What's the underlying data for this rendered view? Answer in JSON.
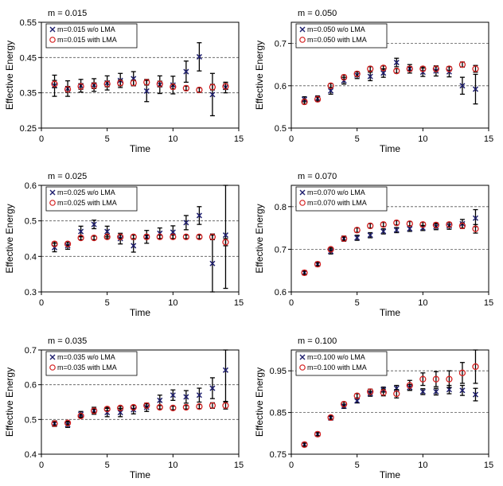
{
  "colors": {
    "wo": "#1f1f6e",
    "with": "#d42020",
    "err": "#000000",
    "grid": "#555555"
  },
  "chart_data": [
    {
      "type": "scatter",
      "title": "m = 0.015",
      "xlabel": "Time",
      "ylabel": "Effective Energy",
      "xlim": [
        0,
        15
      ],
      "ylim": [
        0.25,
        0.55
      ],
      "xticks": [
        0,
        5,
        10,
        15
      ],
      "yticks": [
        0.25,
        0.35,
        0.45,
        0.55
      ],
      "xtick_labels": [
        "0",
        "5",
        "10",
        "15"
      ],
      "ytick_labels": [
        "0.25",
        "0.35",
        "0.45",
        "0.55"
      ],
      "grid_y": [
        0.35,
        0.45
      ],
      "legend": [
        "m=0.015 w/o LMA",
        "m=0.015 with LMA"
      ],
      "series": [
        {
          "name": "m=0.015 w/o LMA",
          "marker": "x",
          "x": [
            1,
            2,
            3,
            4,
            5,
            6,
            7,
            8,
            9,
            10,
            11,
            12,
            13,
            14
          ],
          "y": [
            0.37,
            0.362,
            0.37,
            0.372,
            0.378,
            0.385,
            0.39,
            0.355,
            0.373,
            0.372,
            0.41,
            0.452,
            0.345,
            0.365
          ],
          "err": [
            0.03,
            0.022,
            0.018,
            0.018,
            0.02,
            0.02,
            0.02,
            0.03,
            0.025,
            0.025,
            0.03,
            0.04,
            0.06,
            0.015
          ]
        },
        {
          "name": "m=0.015 with LMA",
          "marker": "o",
          "x": [
            1,
            2,
            3,
            4,
            5,
            6,
            7,
            8,
            9,
            10,
            11,
            12,
            13,
            14
          ],
          "y": [
            0.375,
            0.36,
            0.368,
            0.37,
            0.375,
            0.378,
            0.378,
            0.38,
            0.375,
            0.367,
            0.363,
            0.358,
            0.366,
            0.368
          ],
          "err": [
            0.01,
            0.008,
            0.008,
            0.008,
            0.008,
            0.008,
            0.008,
            0.008,
            0.008,
            0.006,
            0.006,
            0.006,
            0.008,
            0.008
          ]
        }
      ]
    },
    {
      "type": "scatter",
      "title": "m = 0.050",
      "xlabel": "Time",
      "ylabel": "Effective Energy",
      "xlim": [
        0,
        15
      ],
      "ylim": [
        0.5,
        0.75
      ],
      "xticks": [
        0,
        5,
        10,
        15
      ],
      "yticks": [
        0.5,
        0.6,
        0.7
      ],
      "xtick_labels": [
        "0",
        "5",
        "10",
        "15"
      ],
      "ytick_labels": [
        "0.5",
        "0.6",
        "0.7"
      ],
      "grid_y": [
        0.6,
        0.7
      ],
      "legend": [
        "m=0.050 w/o LMA",
        "m=0.050 with LMA"
      ],
      "series": [
        {
          "name": "m=0.050 w/o LMA",
          "marker": "x",
          "x": [
            1,
            2,
            3,
            4,
            5,
            6,
            7,
            8,
            9,
            10,
            11,
            12,
            13,
            14
          ],
          "y": [
            0.568,
            0.57,
            0.588,
            0.612,
            0.625,
            0.622,
            0.63,
            0.655,
            0.64,
            0.632,
            0.635,
            0.633,
            0.6,
            0.592
          ],
          "err": [
            0.006,
            0.006,
            0.008,
            0.008,
            0.008,
            0.01,
            0.01,
            0.01,
            0.01,
            0.01,
            0.012,
            0.012,
            0.02,
            0.035
          ]
        },
        {
          "name": "m=0.050 with LMA",
          "marker": "o",
          "x": [
            1,
            2,
            3,
            4,
            5,
            6,
            7,
            8,
            9,
            10,
            11,
            12,
            13,
            14
          ],
          "y": [
            0.562,
            0.568,
            0.6,
            0.62,
            0.628,
            0.64,
            0.642,
            0.635,
            0.64,
            0.64,
            0.64,
            0.64,
            0.65,
            0.64
          ],
          "err": [
            0.005,
            0.005,
            0.005,
            0.005,
            0.005,
            0.005,
            0.005,
            0.005,
            0.005,
            0.005,
            0.005,
            0.005,
            0.006,
            0.008
          ]
        }
      ]
    },
    {
      "type": "scatter",
      "title": "m = 0.025",
      "xlabel": "Time",
      "ylabel": "Effective Energy",
      "xlim": [
        0,
        15
      ],
      "ylim": [
        0.3,
        0.6
      ],
      "xticks": [
        0,
        5,
        10,
        15
      ],
      "yticks": [
        0.3,
        0.4,
        0.5,
        0.6
      ],
      "xtick_labels": [
        "0",
        "5",
        "10",
        "15"
      ],
      "ytick_labels": [
        "0.3",
        "0.4",
        "0.5",
        "0.6"
      ],
      "grid_y": [
        0.4,
        0.5
      ],
      "legend": [
        "m=0.025 w/o LMA",
        "m=0.025 with LMA"
      ],
      "series": [
        {
          "name": "m=0.025 w/o LMA",
          "marker": "x",
          "x": [
            1,
            2,
            3,
            4,
            5,
            6,
            7,
            8,
            9,
            10,
            11,
            12,
            13,
            14
          ],
          "y": [
            0.425,
            0.43,
            0.47,
            0.49,
            0.47,
            0.45,
            0.43,
            0.455,
            0.465,
            0.468,
            0.495,
            0.515,
            0.38,
            0.46
          ],
          "err": [
            0.012,
            0.01,
            0.015,
            0.012,
            0.015,
            0.015,
            0.018,
            0.018,
            0.015,
            0.018,
            0.02,
            0.025,
            0.08,
            0.15
          ]
        },
        {
          "name": "m=0.025 with LMA",
          "marker": "o",
          "x": [
            1,
            2,
            3,
            4,
            5,
            6,
            7,
            8,
            9,
            10,
            11,
            12,
            13,
            14
          ],
          "y": [
            0.435,
            0.435,
            0.452,
            0.452,
            0.455,
            0.455,
            0.455,
            0.455,
            0.455,
            0.455,
            0.455,
            0.455,
            0.455,
            0.44
          ],
          "err": [
            0.006,
            0.005,
            0.005,
            0.005,
            0.005,
            0.005,
            0.005,
            0.005,
            0.005,
            0.005,
            0.005,
            0.005,
            0.008,
            0.01
          ]
        }
      ]
    },
    {
      "type": "scatter",
      "title": "m = 0.070",
      "xlabel": "Time",
      "ylabel": "Effective Energy",
      "xlim": [
        0,
        15
      ],
      "ylim": [
        0.6,
        0.85
      ],
      "xticks": [
        0,
        5,
        10,
        15
      ],
      "yticks": [
        0.6,
        0.7,
        0.8
      ],
      "xtick_labels": [
        "0",
        "5",
        "10",
        "15"
      ],
      "ytick_labels": [
        "0.6",
        "0.7",
        "0.8"
      ],
      "grid_y": [
        0.7,
        0.8
      ],
      "legend": [
        "m=0.070 w/o LMA",
        "m=0.070 with LMA"
      ],
      "series": [
        {
          "name": "m=0.070 w/o LMA",
          "marker": "x",
          "x": [
            1,
            2,
            3,
            4,
            5,
            6,
            7,
            8,
            9,
            10,
            11,
            12,
            13,
            14
          ],
          "y": [
            0.645,
            0.665,
            0.695,
            0.725,
            0.727,
            0.733,
            0.742,
            0.745,
            0.748,
            0.75,
            0.753,
            0.755,
            0.76,
            0.773
          ],
          "err": [
            0.005,
            0.005,
            0.006,
            0.006,
            0.006,
            0.006,
            0.006,
            0.006,
            0.006,
            0.006,
            0.007,
            0.008,
            0.01,
            0.02
          ]
        },
        {
          "name": "m=0.070 with LMA",
          "marker": "o",
          "x": [
            1,
            2,
            3,
            4,
            5,
            6,
            7,
            8,
            9,
            10,
            11,
            12,
            13,
            14
          ],
          "y": [
            0.645,
            0.665,
            0.7,
            0.725,
            0.745,
            0.755,
            0.758,
            0.762,
            0.76,
            0.758,
            0.757,
            0.758,
            0.755,
            0.748
          ],
          "err": [
            0.004,
            0.004,
            0.004,
            0.004,
            0.005,
            0.005,
            0.005,
            0.005,
            0.005,
            0.005,
            0.005,
            0.005,
            0.006,
            0.01
          ]
        }
      ]
    },
    {
      "type": "scatter",
      "title": "m = 0.035",
      "xlabel": "Time",
      "ylabel": "Effective Energy",
      "xlim": [
        0,
        15
      ],
      "ylim": [
        0.4,
        0.7
      ],
      "xticks": [
        0,
        5,
        10,
        15
      ],
      "yticks": [
        0.4,
        0.5,
        0.6,
        0.7
      ],
      "xtick_labels": [
        "0",
        "5",
        "10",
        "15"
      ],
      "ytick_labels": [
        "0.4",
        "0.5",
        "0.6",
        "0.7"
      ],
      "grid_y": [
        0.5,
        0.6
      ],
      "legend": [
        "m=0.035 w/o LMA",
        "m=0.035 with LMA"
      ],
      "series": [
        {
          "name": "m=0.035 w/o LMA",
          "marker": "x",
          "x": [
            1,
            2,
            3,
            4,
            5,
            6,
            7,
            8,
            9,
            10,
            11,
            12,
            13,
            14
          ],
          "y": [
            0.488,
            0.485,
            0.515,
            0.525,
            0.52,
            0.52,
            0.528,
            0.535,
            0.555,
            0.57,
            0.565,
            0.57,
            0.59,
            0.642
          ],
          "err": [
            0.008,
            0.008,
            0.008,
            0.01,
            0.012,
            0.012,
            0.012,
            0.012,
            0.015,
            0.015,
            0.018,
            0.02,
            0.03,
            0.09
          ]
        },
        {
          "name": "m=0.035 with LMA",
          "marker": "o",
          "x": [
            1,
            2,
            3,
            4,
            5,
            6,
            7,
            8,
            9,
            10,
            11,
            12,
            13,
            14
          ],
          "y": [
            0.488,
            0.49,
            0.51,
            0.525,
            0.53,
            0.533,
            0.535,
            0.54,
            0.535,
            0.533,
            0.535,
            0.537,
            0.54,
            0.54
          ],
          "err": [
            0.005,
            0.005,
            0.005,
            0.005,
            0.005,
            0.005,
            0.005,
            0.005,
            0.005,
            0.005,
            0.005,
            0.006,
            0.008,
            0.01
          ]
        }
      ]
    },
    {
      "type": "scatter",
      "title": "m = 0.100",
      "xlabel": "Time",
      "ylabel": "Effective Energy",
      "xlim": [
        0,
        15
      ],
      "ylim": [
        0.75,
        1.0
      ],
      "xticks": [
        0,
        5,
        10,
        15
      ],
      "yticks": [
        0.75,
        0.85,
        0.95
      ],
      "xtick_labels": [
        "0",
        "5",
        "10",
        "15"
      ],
      "ytick_labels": [
        "0.75",
        "0.85",
        "0.95"
      ],
      "grid_y": [
        0.85,
        0.95
      ],
      "legend": [
        "m=0.100 w/o LMA",
        "m=0.100 with LMA"
      ],
      "series": [
        {
          "name": "m=0.100 w/o LMA",
          "marker": "x",
          "x": [
            1,
            2,
            3,
            4,
            5,
            6,
            7,
            8,
            9,
            10,
            11,
            12,
            13,
            14
          ],
          "y": [
            0.773,
            0.798,
            0.837,
            0.865,
            0.878,
            0.895,
            0.905,
            0.908,
            0.91,
            0.9,
            0.9,
            0.905,
            0.903,
            0.893
          ],
          "err": [
            0.004,
            0.004,
            0.005,
            0.005,
            0.005,
            0.006,
            0.006,
            0.007,
            0.007,
            0.007,
            0.008,
            0.01,
            0.012,
            0.015
          ]
        },
        {
          "name": "m=0.100 with LMA",
          "marker": "o",
          "x": [
            1,
            2,
            3,
            4,
            5,
            6,
            7,
            8,
            9,
            10,
            11,
            12,
            13,
            14
          ],
          "y": [
            0.773,
            0.798,
            0.838,
            0.87,
            0.89,
            0.9,
            0.898,
            0.895,
            0.915,
            0.93,
            0.93,
            0.93,
            0.945,
            0.96
          ],
          "err": [
            0.004,
            0.004,
            0.004,
            0.005,
            0.005,
            0.006,
            0.008,
            0.01,
            0.012,
            0.015,
            0.018,
            0.02,
            0.025,
            0.04
          ]
        }
      ]
    }
  ]
}
